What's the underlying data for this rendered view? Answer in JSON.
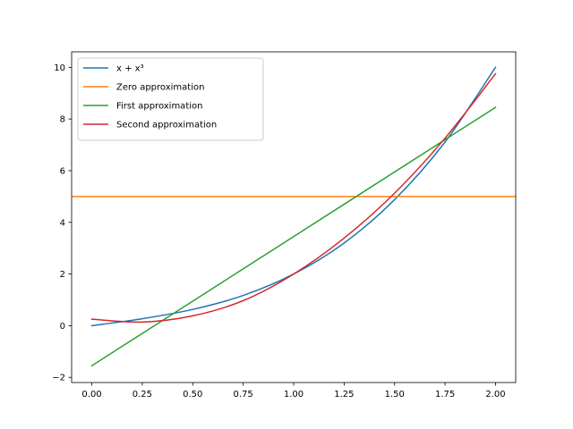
{
  "chart_data": {
    "type": "line",
    "title": "",
    "xlabel": "",
    "ylabel": "",
    "xlim": [
      -0.1,
      2.1
    ],
    "ylim": [
      -2.2,
      10.6
    ],
    "x_ticks": [
      0.0,
      0.25,
      0.5,
      0.75,
      1.0,
      1.25,
      1.5,
      1.75,
      2.0
    ],
    "x_tick_labels": [
      "0.00",
      "0.25",
      "0.50",
      "0.75",
      "1.00",
      "1.25",
      "1.50",
      "1.75",
      "2.00"
    ],
    "y_ticks": [
      -2,
      0,
      2,
      4,
      6,
      8,
      10
    ],
    "y_tick_labels": [
      "−2",
      "0",
      "2",
      "4",
      "6",
      "8",
      "10"
    ],
    "grid": false,
    "legend_position": "top-left",
    "x": [
      0.0,
      0.25,
      0.5,
      0.75,
      1.0,
      1.25,
      1.5,
      1.75,
      2.0
    ],
    "series": [
      {
        "name": "x + x³",
        "color": "#1f77b4",
        "x": [
          0.0,
          0.25,
          0.5,
          0.75,
          1.0,
          1.25,
          1.5,
          1.75,
          2.0
        ],
        "values": [
          0.0,
          0.27,
          0.63,
          1.17,
          2.0,
          3.2,
          4.88,
          7.11,
          10.0
        ]
      },
      {
        "name": "Zero approximation",
        "color": "#ff7f0e",
        "x": [
          -0.1,
          2.1
        ],
        "values": [
          5.0,
          5.0
        ]
      },
      {
        "name": "First approximation",
        "color": "#2ca02c",
        "x": [
          0.0,
          2.0
        ],
        "values": [
          -1.55,
          8.45
        ]
      },
      {
        "name": "Second approximation",
        "color": "#d62728",
        "x": [
          0.0,
          0.25,
          0.5,
          0.75,
          1.0,
          1.25,
          1.5,
          1.75,
          2.0
        ],
        "values": [
          0.25,
          0.14,
          0.38,
          0.97,
          2.0,
          3.39,
          5.13,
          7.26,
          9.75
        ]
      }
    ]
  }
}
